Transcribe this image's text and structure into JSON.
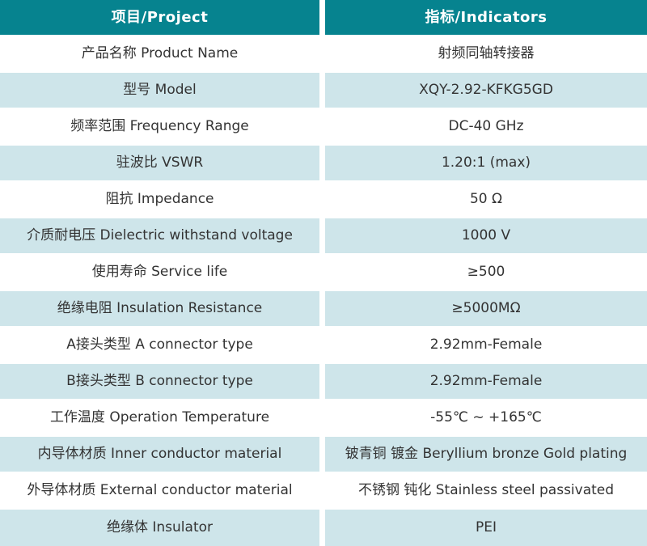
{
  "table": {
    "header": {
      "project_label": "项目/Project",
      "indicators_label": "指标/Indicators"
    },
    "rows": [
      {
        "project": "产品名称 Product Name",
        "indicator": "射频同轴转接器"
      },
      {
        "project": "型号 Model",
        "indicator": "XQY-2.92-KFKG5GD"
      },
      {
        "project": "频率范围 Frequency Range",
        "indicator": "DC-40 GHz"
      },
      {
        "project": "驻波比 VSWR",
        "indicator": "1.20:1 (max)"
      },
      {
        "project": "阻抗 Impedance",
        "indicator": "50 Ω"
      },
      {
        "project": "介质耐电压 Dielectric withstand voltage",
        "indicator": "1000 V"
      },
      {
        "project": "使用寿命 Service life",
        "indicator": "≥500"
      },
      {
        "project": "绝缘电阻 Insulation Resistance",
        "indicator": "≥5000MΩ"
      },
      {
        "project": "A接头类型 A connector type",
        "indicator": "2.92mm-Female"
      },
      {
        "project": "B接头类型 B connector type",
        "indicator": "2.92mm-Female"
      },
      {
        "project": "工作温度 Operation Temperature",
        "indicator": "-55℃ ~ +165℃"
      },
      {
        "project": "内导体材质 Inner conductor material",
        "indicator": "铍青铜 镀金 Beryllium bronze Gold plating"
      },
      {
        "project": "外导体材质 External conductor material",
        "indicator": "不锈钢 钝化 Stainless steel passivated"
      },
      {
        "project": "绝缘体 Insulator",
        "indicator": "PEI"
      }
    ]
  },
  "colors": {
    "header_bg": "#06838F",
    "header_text": "#FFFFFF",
    "row_bg": "#FFFFFF",
    "row_alt_bg": "#CEE5EA",
    "body_text": "#333333",
    "gutter": "#FFFFFF"
  }
}
